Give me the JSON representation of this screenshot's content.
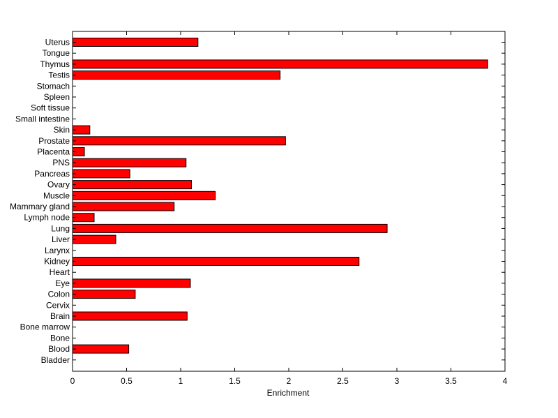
{
  "chart_data": {
    "type": "bar",
    "orientation": "horizontal",
    "xlabel": "Enrichment",
    "ylabel": "",
    "title": "",
    "xlim": [
      0,
      4
    ],
    "xticks": [
      "0",
      "0.5",
      "1",
      "1.5",
      "2",
      "2.5",
      "3",
      "3.5",
      "4"
    ],
    "grid": false,
    "bar_color": "#ff0000",
    "categories": [
      "Uterus",
      "Tongue",
      "Thymus",
      "Testis",
      "Stomach",
      "Spleen",
      "Soft tissue",
      "Small intestine",
      "Skin",
      "Prostate",
      "Placenta",
      "PNS",
      "Pancreas",
      "Ovary",
      "Muscle",
      "Mammary gland",
      "Lymph node",
      "Lung",
      "Liver",
      "Larynx",
      "Kidney",
      "Heart",
      "Eye",
      "Colon",
      "Cervix",
      "Brain",
      "Bone marrow",
      "Bone",
      "Blood",
      "Bladder"
    ],
    "values": [
      1.16,
      0,
      3.84,
      1.92,
      0,
      0,
      0,
      0,
      0.16,
      1.97,
      0.11,
      1.05,
      0.53,
      1.1,
      1.32,
      0.94,
      0.2,
      2.91,
      0.4,
      0,
      2.65,
      0,
      1.09,
      0.58,
      0,
      1.06,
      0,
      0,
      0.52,
      0
    ]
  }
}
